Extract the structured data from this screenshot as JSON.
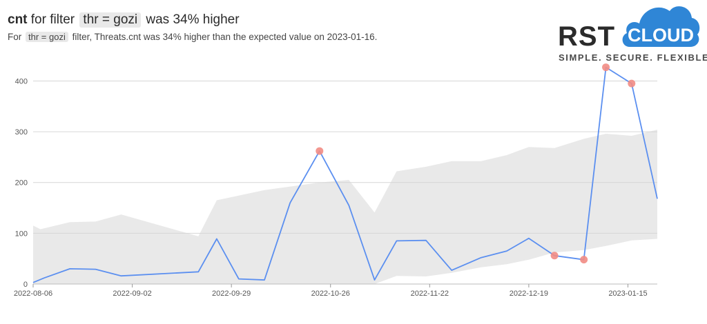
{
  "header": {
    "title_metric": "cnt",
    "title_pre": "for filter",
    "title_filter": "thr = gozi",
    "title_post": "was 34% higher",
    "subtitle_pre": "For",
    "subtitle_filter": "thr = gozi",
    "subtitle_post": "filter, Threats.cnt was 34% higher than the expected value on 2023-01-16."
  },
  "logo": {
    "word": "RST",
    "cloud_word": "CLOUD",
    "tagline": "SIMPLE.  SECURE.  FLEXIBLE.",
    "cloud_color": "#2f86d6"
  },
  "chart_data": {
    "type": "line",
    "x_ticks": [
      "2022-08-06",
      "2022-09-02",
      "2022-09-29",
      "2022-10-26",
      "2022-11-22",
      "2022-12-19",
      "2023-01-15"
    ],
    "y_ticks": [
      0,
      100,
      200,
      300,
      400
    ],
    "xlim": [
      "2022-08-06",
      "2023-01-23"
    ],
    "ylim": [
      0,
      440
    ],
    "grid": true,
    "series": [
      {
        "kind": "actual",
        "color": "#5b8ff0",
        "points": [
          [
            "2022-08-06",
            3
          ],
          [
            "2022-08-09",
            12
          ],
          [
            "2022-08-16",
            30
          ],
          [
            "2022-08-23",
            29
          ],
          [
            "2022-08-30",
            16
          ],
          [
            "2022-09-20",
            24
          ],
          [
            "2022-09-25",
            89
          ],
          [
            "2022-10-01",
            10
          ],
          [
            "2022-10-08",
            8
          ],
          [
            "2022-10-15",
            160
          ],
          [
            "2022-10-23",
            262
          ],
          [
            "2022-10-31",
            155
          ],
          [
            "2022-11-07",
            8
          ],
          [
            "2022-11-13",
            85
          ],
          [
            "2022-11-21",
            86
          ],
          [
            "2022-11-28",
            27
          ],
          [
            "2022-12-06",
            52
          ],
          [
            "2022-12-13",
            65
          ],
          [
            "2022-12-19",
            90
          ],
          [
            "2022-12-26",
            56
          ],
          [
            "2023-01-03",
            48
          ],
          [
            "2023-01-09",
            427
          ],
          [
            "2023-01-16",
            395
          ],
          [
            "2023-01-23",
            168
          ]
        ]
      },
      {
        "kind": "expected-band",
        "color": "#e9e9e9",
        "upper": [
          [
            "2022-08-06",
            115
          ],
          [
            "2022-08-08",
            108
          ],
          [
            "2022-08-16",
            122
          ],
          [
            "2022-08-23",
            123
          ],
          [
            "2022-08-30",
            137
          ],
          [
            "2022-09-20",
            94
          ],
          [
            "2022-09-25",
            165
          ],
          [
            "2022-10-08",
            185
          ],
          [
            "2022-10-23",
            200
          ],
          [
            "2022-10-31",
            205
          ],
          [
            "2022-11-07",
            141
          ],
          [
            "2022-11-13",
            222
          ],
          [
            "2022-11-21",
            231
          ],
          [
            "2022-11-28",
            242
          ],
          [
            "2022-12-06",
            242
          ],
          [
            "2022-12-13",
            254
          ],
          [
            "2022-12-19",
            270
          ],
          [
            "2022-12-26",
            268
          ],
          [
            "2023-01-03",
            286
          ],
          [
            "2023-01-09",
            296
          ],
          [
            "2023-01-16",
            292
          ],
          [
            "2023-01-23",
            304
          ]
        ],
        "lower": [
          [
            "2022-11-07",
            0
          ],
          [
            "2022-11-13",
            16
          ],
          [
            "2022-11-21",
            15
          ],
          [
            "2022-11-28",
            22
          ],
          [
            "2022-12-06",
            33
          ],
          [
            "2022-12-13",
            39
          ],
          [
            "2022-12-19",
            48
          ],
          [
            "2022-12-26",
            62
          ],
          [
            "2023-01-03",
            67
          ],
          [
            "2023-01-09",
            75
          ],
          [
            "2023-01-16",
            86
          ],
          [
            "2023-01-23",
            89
          ]
        ]
      }
    ],
    "anomalies": [
      [
        "2022-10-23",
        262
      ],
      [
        "2022-12-26",
        56
      ],
      [
        "2023-01-03",
        48
      ],
      [
        "2023-01-09",
        427
      ],
      [
        "2023-01-16",
        395
      ]
    ],
    "anomaly_color": "#f28c84"
  }
}
